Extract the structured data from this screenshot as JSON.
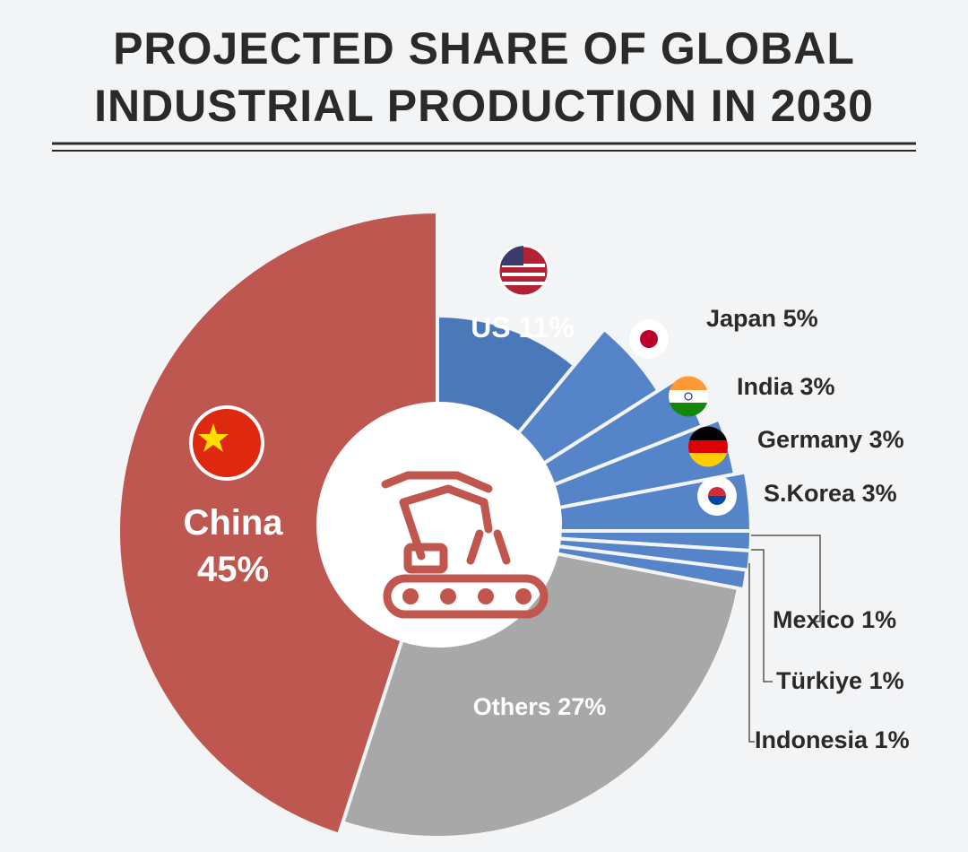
{
  "chart_data": {
    "type": "pie",
    "title": "PROJECTED SHARE OF GLOBAL INDUSTRIAL PRODUCTION IN 2030",
    "categories": [
      "US",
      "Japan",
      "India",
      "Germany",
      "S.Korea",
      "Mexico",
      "Türkiye",
      "Indonesia",
      "Others",
      "China"
    ],
    "values": [
      11,
      5,
      3,
      3,
      3,
      1,
      1,
      1,
      27,
      45
    ],
    "value_labels": [
      "11%",
      "5%",
      "3%",
      "3%",
      "3%",
      "1%",
      "1%",
      "1%",
      "27%",
      "45%"
    ],
    "colors": [
      "#4a78b9",
      "#5585c8",
      "#5585c8",
      "#5585c8",
      "#5585c8",
      "#5585c8",
      "#5585c8",
      "#5585c8",
      "#a8a8a8",
      "#bd574f"
    ]
  }
}
